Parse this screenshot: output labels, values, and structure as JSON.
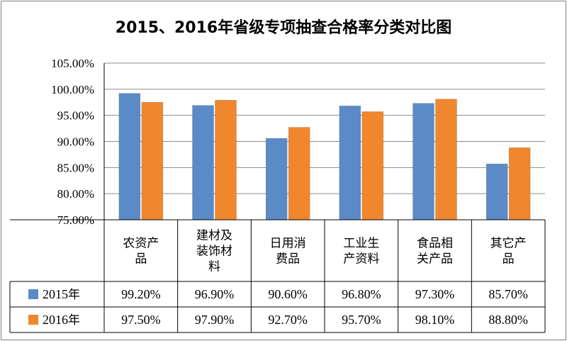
{
  "chart_data": {
    "type": "bar",
    "title": "2015、2016年省级专项抽查合格率分类对比图",
    "categories": [
      [
        "农资产",
        "品"
      ],
      [
        "建材及",
        "装饰材",
        "料"
      ],
      [
        "日用消",
        "费品"
      ],
      [
        "工业生",
        "产资料"
      ],
      [
        "食品相",
        "关产品"
      ],
      [
        "其它产",
        "品"
      ]
    ],
    "series": [
      {
        "name": "2015年",
        "color": "#5B8BC7",
        "values": [
          99.2,
          96.9,
          90.6,
          96.8,
          97.3,
          85.7
        ],
        "labels": [
          "99.20%",
          "96.90%",
          "90.60%",
          "96.80%",
          "97.30%",
          "85.70%"
        ]
      },
      {
        "name": "2016年",
        "color": "#F0862E",
        "values": [
          97.5,
          97.9,
          92.7,
          95.7,
          98.1,
          88.8
        ],
        "labels": [
          "97.50%",
          "97.90%",
          "92.70%",
          "95.70%",
          "98.10%",
          "88.80%"
        ]
      }
    ],
    "ylim": [
      75,
      105
    ],
    "yticks": [
      75,
      80,
      85,
      90,
      95,
      100,
      105
    ],
    "ytick_labels": [
      "75.00%",
      "80.00%",
      "85.00%",
      "90.00%",
      "95.00%",
      "100.00%",
      "105.00%"
    ],
    "grid": true,
    "data_table": true,
    "legend": "in data table"
  }
}
